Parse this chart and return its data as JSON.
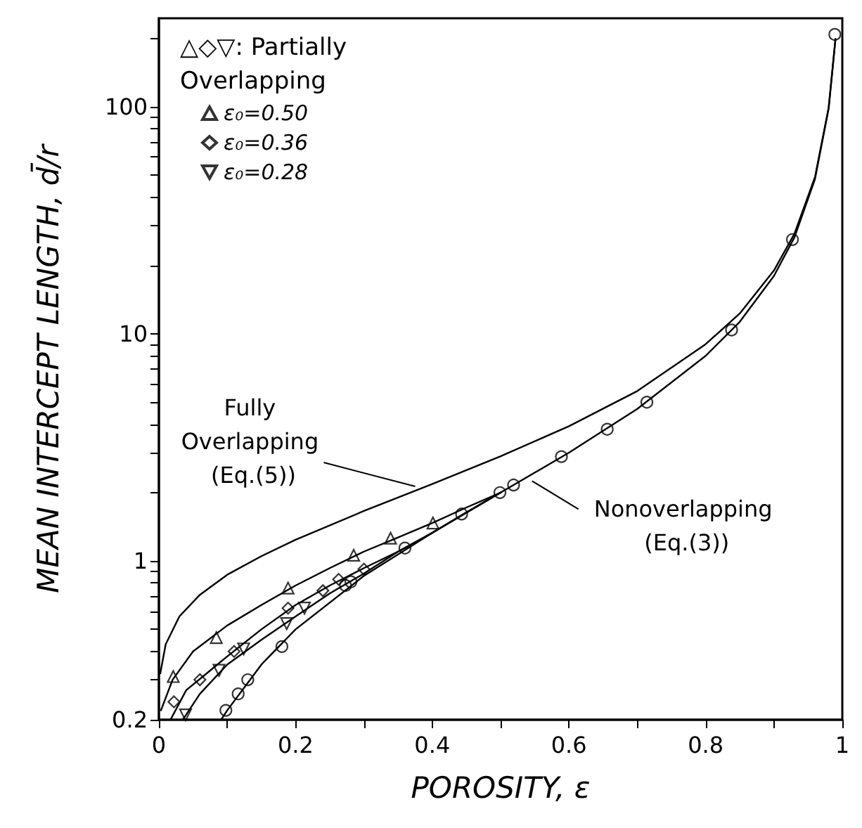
{
  "chart_data": {
    "type": "line",
    "xlabel": "POROSITY, ε",
    "ylabel": "MEAN INTERCEPT LENGTH, d̄/r",
    "legend_title": "△◇▽: Partially Overlapping",
    "legend": "top left",
    "log": "y",
    "grid": false,
    "xlim": [
      0,
      1
    ],
    "xticks": [
      0,
      {
        "value": 0.1,
        "label": null
      },
      0.2,
      {
        "value": 0.3,
        "label": null
      },
      0.4,
      {
        "value": 0.5,
        "label": null
      },
      0.6,
      {
        "value": 0.7,
        "label": null
      },
      0.8,
      {
        "value": 0.9,
        "label": null
      },
      1
    ],
    "ylim": [
      0.2,
      245
    ],
    "yticks": [
      0.2,
      {
        "value": 0.3,
        "label": null
      },
      {
        "value": 0.4,
        "label": null
      },
      {
        "value": 0.5,
        "label": null
      },
      {
        "value": 0.6,
        "label": null
      },
      {
        "value": 0.7,
        "label": null
      },
      {
        "value": 0.8,
        "label": null
      },
      {
        "value": 0.9,
        "label": null
      },
      1,
      {
        "value": 2,
        "label": null
      },
      {
        "value": 3,
        "label": null
      },
      {
        "value": 4,
        "label": null
      },
      {
        "value": 5,
        "label": null
      },
      {
        "value": 6,
        "label": null
      },
      {
        "value": 7,
        "label": null
      },
      {
        "value": 8,
        "label": null
      },
      {
        "value": 9,
        "label": null
      },
      10,
      {
        "value": 20,
        "label": null
      },
      {
        "value": 30,
        "label": null
      },
      {
        "value": 40,
        "label": null
      },
      {
        "value": 50,
        "label": null
      },
      {
        "value": 60,
        "label": null
      },
      {
        "value": 70,
        "label": null
      },
      {
        "value": 80,
        "label": null
      },
      {
        "value": 90,
        "label": null
      },
      100,
      {
        "value": 200,
        "label": null
      }
    ],
    "annotations": [
      {
        "text": "Fully Overlapping (Eq.(5))",
        "x": 0.375,
        "y": 2.13
      },
      {
        "text": "Nonoverlapping (Eq.(3))",
        "x": 0.546,
        "y": 2.25
      }
    ],
    "series": [
      {
        "type": "line",
        "marker": "none",
        "line_style": "solid",
        "color": "#000000",
        "x": [
          0.002,
          0.01,
          0.03,
          0.06,
          0.1,
          0.15,
          0.2,
          0.3,
          0.4,
          0.5,
          0.6,
          0.7,
          0.8,
          0.85,
          0.9,
          0.93,
          0.96,
          0.98,
          0.99
        ],
        "values": [
          0.32,
          0.43,
          0.57,
          0.71,
          0.87,
          1.05,
          1.24,
          1.66,
          2.18,
          2.89,
          3.92,
          5.6,
          9.0,
          12.3,
          19.0,
          27.6,
          49,
          99,
          199
        ]
      },
      {
        "type": "line",
        "marker": "none",
        "line_style": "solid",
        "color": "#000000",
        "x": [
          0.091,
          0.1,
          0.15,
          0.2,
          0.3,
          0.4,
          0.5,
          0.6,
          0.7,
          0.8,
          0.85,
          0.9,
          0.93,
          0.96,
          0.98,
          0.99
        ],
        "values": [
          0.2,
          0.22,
          0.35,
          0.5,
          0.86,
          1.33,
          2.0,
          3.0,
          4.67,
          8.0,
          11.3,
          18,
          26.6,
          48,
          98,
          198
        ]
      },
      {
        "type": "line",
        "marker": "none",
        "line_style": "solid",
        "color": "#000000",
        "x": [
          0.003,
          0.02,
          0.05,
          0.1,
          0.15,
          0.2,
          0.25,
          0.3,
          0.35,
          0.4,
          0.45,
          0.5
        ],
        "values": [
          0.22,
          0.3,
          0.4,
          0.52,
          0.64,
          0.78,
          0.93,
          1.1,
          1.27,
          1.47,
          1.72,
          2.0
        ]
      },
      {
        "type": "line",
        "marker": "none",
        "line_style": "solid",
        "color": "#000000",
        "x": [
          0.017,
          0.04,
          0.07,
          0.1,
          0.15,
          0.2,
          0.25,
          0.3,
          0.35,
          0.4,
          0.45,
          0.5
        ],
        "values": [
          0.2,
          0.27,
          0.32,
          0.38,
          0.5,
          0.64,
          0.78,
          0.93,
          1.1,
          1.33,
          1.64,
          2.0
        ]
      },
      {
        "type": "line",
        "marker": "none",
        "line_style": "solid",
        "color": "#000000",
        "x": [
          0.035,
          0.06,
          0.1,
          0.15,
          0.2,
          0.25,
          0.3,
          0.35,
          0.4,
          0.5
        ],
        "values": [
          0.2,
          0.26,
          0.35,
          0.45,
          0.57,
          0.72,
          0.88,
          1.1,
          1.33,
          2.0
        ]
      },
      {
        "type": "scatter",
        "marker": "circle",
        "color": "#000000",
        "x": [
          0.098,
          0.116,
          0.13,
          0.18,
          0.273,
          0.281,
          0.36,
          0.443,
          0.499,
          0.519,
          0.589,
          0.656,
          0.714,
          0.838,
          0.927,
          0.989
        ],
        "values": [
          0.22,
          0.26,
          0.3,
          0.42,
          0.78,
          0.81,
          1.14,
          1.61,
          2.0,
          2.16,
          2.88,
          3.8,
          5.0,
          10.4,
          26,
          208
        ]
      },
      {
        "type": "scatter",
        "name": "ε₀=0.50",
        "marker": "triangle",
        "color": "#000000",
        "x": [
          0.021,
          0.084,
          0.189,
          0.285,
          0.339,
          0.401
        ],
        "values": [
          0.31,
          0.46,
          0.76,
          1.06,
          1.26,
          1.47
        ]
      },
      {
        "type": "scatter",
        "name": "ε₀=0.36",
        "marker": "diamond",
        "color": "#000000",
        "x": [
          0.022,
          0.06,
          0.11,
          0.189,
          0.24,
          0.263,
          0.3
        ],
        "values": [
          0.24,
          0.3,
          0.4,
          0.62,
          0.74,
          0.83,
          0.92
        ]
      },
      {
        "type": "scatter",
        "name": "ε₀=0.28",
        "marker": "triangle-down",
        "color": "#000000",
        "x": [
          0.039,
          0.088,
          0.124,
          0.187,
          0.213
        ],
        "values": [
          0.21,
          0.33,
          0.41,
          0.53,
          0.62
        ]
      }
    ]
  }
}
